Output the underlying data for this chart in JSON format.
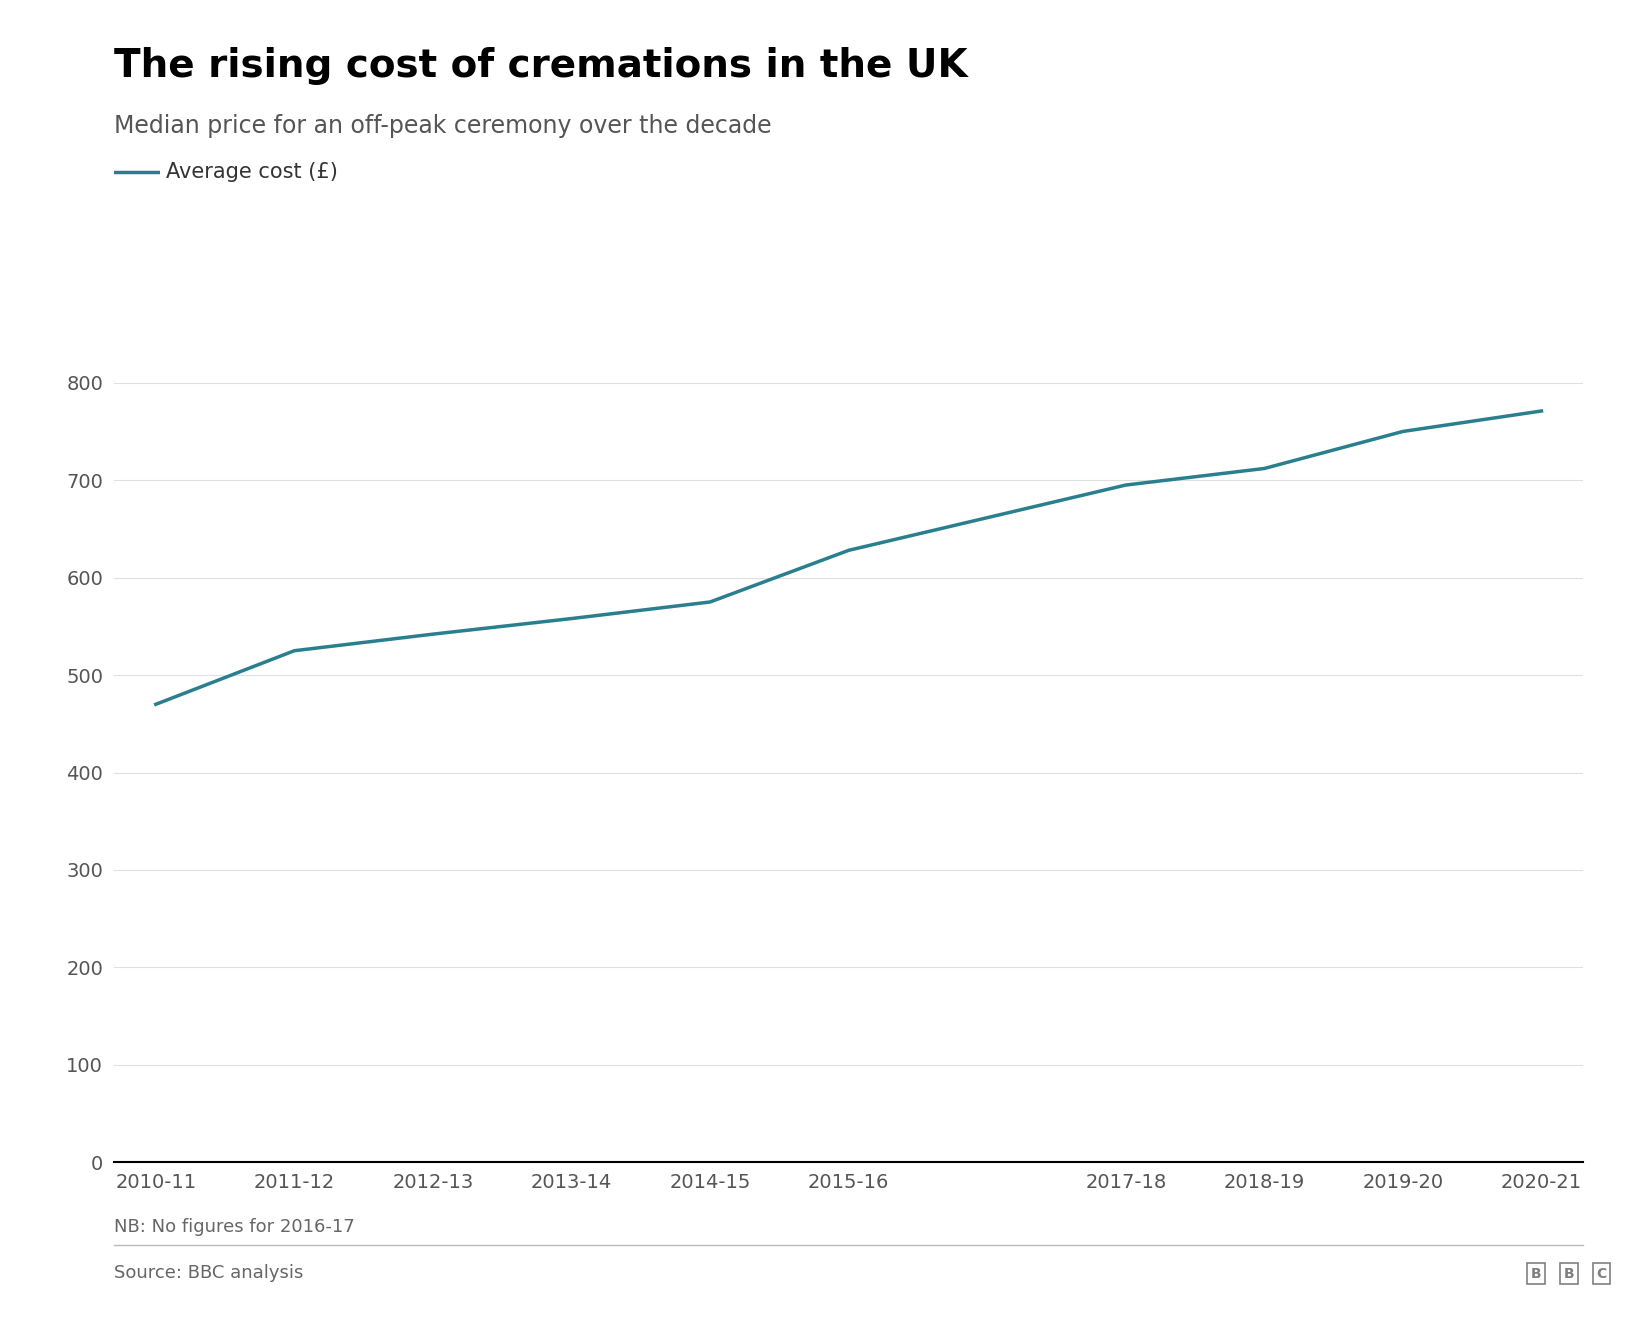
{
  "title": "The rising cost of cremations in the UK",
  "subtitle": "Median price for an off-peak ceremony over the decade",
  "legend_label": "Average cost (£)",
  "note": "NB: No figures for 2016-17",
  "source": "Source: BBC analysis",
  "x_labels": [
    "2010-11",
    "2011-12",
    "2012-13",
    "2013-14",
    "2014-15",
    "2015-16",
    "2017-18",
    "2018-19",
    "2019-20",
    "2020-21"
  ],
  "x_positions": [
    0,
    1,
    2,
    3,
    4,
    5,
    7,
    8,
    9,
    10
  ],
  "values": [
    470,
    525,
    542,
    558,
    575,
    628,
    695,
    712,
    750,
    771
  ],
  "ylim": [
    0,
    850
  ],
  "yticks": [
    0,
    100,
    200,
    300,
    400,
    500,
    600,
    700,
    800
  ],
  "line_color": "#2a7f8f",
  "line_width": 2.5,
  "title_fontsize": 28,
  "subtitle_fontsize": 17,
  "tick_fontsize": 14,
  "legend_fontsize": 15,
  "note_fontsize": 13,
  "source_fontsize": 13,
  "background_color": "#ffffff",
  "axis_line_color": "#000000",
  "tick_color": "#555555",
  "grid_color": "#e0e0e0",
  "bbc_logo_color": "#808080"
}
